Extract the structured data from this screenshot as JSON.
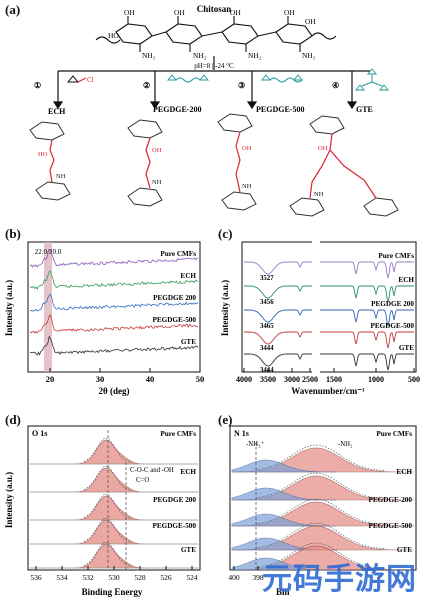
{
  "panels": {
    "a": {
      "letter": "(a)",
      "polymer": "Chitosan",
      "conditions": "pH=8 | -24 °C",
      "routes": [
        {
          "num": "①",
          "name": "ECH"
        },
        {
          "num": "②",
          "name": "PEGDGE-200"
        },
        {
          "num": "③",
          "name": "PEGDGE-500"
        },
        {
          "num": "④",
          "name": "GTE"
        }
      ],
      "atoms": {
        "oh": "OH",
        "nh2": "NH₂",
        "ho": "HO",
        "nh": "NH",
        "cl": "Cl"
      }
    },
    "b": {
      "letter": "(b)",
      "annotation": "22.0/20.0",
      "ylabel": "Intensity (a.u.)",
      "xlabel": "2θ (deg)",
      "xticks": [
        "20",
        "30",
        "40",
        "50"
      ],
      "labels": [
        "Pure CMFs",
        "ECH",
        "PEGDGE 200",
        "PEGDGE-500",
        "GTE"
      ]
    },
    "c": {
      "letter": "(c)",
      "ylabel": "Intensity (a.u.)",
      "xlabel": "Wavenumber/cm⁻¹",
      "xticks": [
        "4000",
        "3500",
        "3000",
        "2500",
        "1500",
        "1000",
        "500"
      ],
      "labels": [
        "Pure CMFs",
        "ECH",
        "PEGDGE 200",
        "PEGDGE-500",
        "GTE"
      ],
      "peaks": [
        "3527",
        "3456",
        "3465",
        "3444",
        "3444"
      ]
    },
    "d": {
      "letter": "(d)",
      "core": "O 1s",
      "ylabel": "Intensity (a.u.)",
      "xlabel": "Binding Energy",
      "xticks": [
        "536",
        "534",
        "532",
        "530",
        "528",
        "526",
        "524"
      ],
      "labels": [
        "Pure CMFs",
        "ECH",
        "PEGDGE 200",
        "PEGDGE-500",
        "GTE"
      ],
      "ann1": "C-O-C and -OH",
      "ann2": "C=O"
    },
    "e": {
      "letter": "(e)",
      "core": "N 1s",
      "ylabel": "Intensity (a.u.)",
      "xlabel": "Bin",
      "xticks": [
        "400",
        "398"
      ],
      "labels": [
        "Pure CMFs",
        "ECH",
        "PEGDGE-200",
        "PEGDGE-500",
        "GTE"
      ],
      "ann1": "-NH₃⁺",
      "ann2": "-NH₂"
    }
  },
  "watermark": "元码手游网",
  "colors": {
    "xrd": [
      "#8a5db8",
      "#3b9a62",
      "#3a6fc0",
      "#c83c3c",
      "#333333"
    ],
    "ftir": [
      "#9b7ac8",
      "#2d8f6e",
      "#2f62b0",
      "#c23a3a",
      "#333333"
    ],
    "xps_main": "#e58a82",
    "xps_blue": "#7da1d8",
    "shade": "#d9a9b2"
  }
}
